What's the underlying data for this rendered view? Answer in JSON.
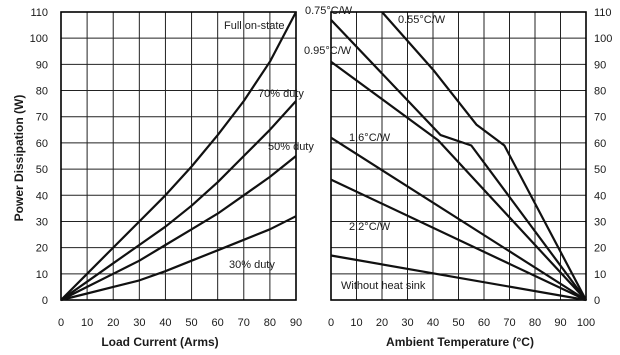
{
  "chart_data": [
    {
      "type": "line",
      "xlabel": "Load Current (Arms)",
      "ylabel": "Power Dissipation (W)",
      "xlim": [
        0,
        90
      ],
      "ylim": [
        0,
        110
      ],
      "x_ticks": [
        0,
        10,
        20,
        30,
        40,
        50,
        60,
        70,
        80,
        90
      ],
      "y_ticks": [
        0,
        10,
        20,
        30,
        40,
        50,
        60,
        70,
        80,
        90,
        100,
        110
      ],
      "grid": true,
      "series": [
        {
          "name": "Full on-state",
          "x": [
            0,
            10,
            20,
            30,
            40,
            50,
            60,
            70,
            80,
            90
          ],
          "y": [
            0,
            10,
            20,
            30,
            40,
            51,
            63,
            76,
            91,
            110
          ]
        },
        {
          "name": "70% duty",
          "x": [
            0,
            10,
            20,
            30,
            40,
            50,
            60,
            70,
            80,
            90
          ],
          "y": [
            0,
            7,
            14,
            21,
            28,
            36,
            45,
            55,
            65,
            76
          ]
        },
        {
          "name": "50% duty",
          "x": [
            0,
            10,
            20,
            30,
            40,
            50,
            60,
            70,
            80,
            90
          ],
          "y": [
            0,
            5,
            10,
            15,
            21,
            27,
            33,
            40,
            47,
            55
          ]
        },
        {
          "name": "30% duty",
          "x": [
            0,
            10,
            20,
            30,
            40,
            50,
            60,
            70,
            80,
            90
          ],
          "y": [
            0,
            2.5,
            5,
            7.5,
            11,
            15,
            19,
            23,
            27,
            32
          ]
        }
      ]
    },
    {
      "type": "line",
      "xlabel": "Ambient Temperature (°C)",
      "ylabel": "",
      "xlim": [
        0,
        100
      ],
      "ylim": [
        0,
        110
      ],
      "x_ticks": [
        0,
        10,
        20,
        30,
        40,
        50,
        60,
        70,
        80,
        90,
        100
      ],
      "y_ticks": [
        0,
        10,
        20,
        30,
        40,
        50,
        60,
        70,
        80,
        90,
        100,
        110
      ],
      "grid": true,
      "series": [
        {
          "name": "0.55°C/W",
          "x": [
            20,
            40,
            57,
            68,
            100
          ],
          "y": [
            110,
            88,
            67,
            59,
            0
          ]
        },
        {
          "name": "0.75°C/W",
          "x": [
            0,
            43,
            55,
            100
          ],
          "y": [
            107,
            63,
            59,
            0
          ]
        },
        {
          "name": "0.95°C/W",
          "x": [
            0,
            42,
            100
          ],
          "y": [
            91,
            61,
            0
          ]
        },
        {
          "name": "1.6°C/W",
          "x": [
            0,
            100
          ],
          "y": [
            62,
            0
          ]
        },
        {
          "name": "2.2°C/W",
          "x": [
            0,
            100
          ],
          "y": [
            46,
            0
          ]
        },
        {
          "name": "Without heat sink",
          "x": [
            0,
            100
          ],
          "y": [
            17,
            0
          ]
        }
      ]
    }
  ]
}
